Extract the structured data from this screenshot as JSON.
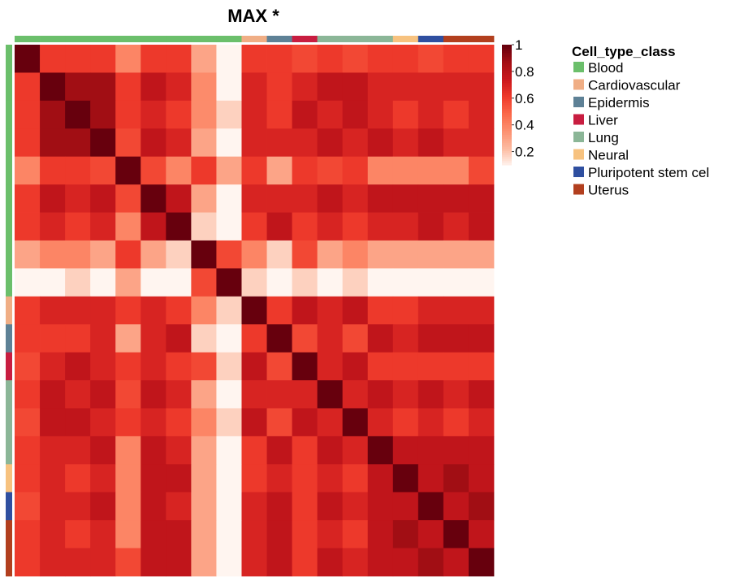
{
  "chart_data": {
    "type": "heatmap",
    "title": "MAX *",
    "legend": {
      "title": "Cell_type_class",
      "placement": "right",
      "items": [
        {
          "label": "Blood",
          "color": "#6BBF6B"
        },
        {
          "label": "Cardiovascular",
          "color": "#F0AE85"
        },
        {
          "label": "Epidermis",
          "color": "#5E8196"
        },
        {
          "label": "Liver",
          "color": "#C81D40"
        },
        {
          "label": "Lung",
          "color": "#8BB697"
        },
        {
          "label": "Neural",
          "color": "#F7C27F"
        },
        {
          "label": "Pluripotent stem cel",
          "color": "#2F4FA0"
        },
        {
          "label": "Uterus",
          "color": "#B23F1E"
        }
      ]
    },
    "color_scale": {
      "min": 0.1,
      "max": 1,
      "ticks": [
        "1",
        "0.8",
        "0.6",
        "0.4",
        "0.2"
      ],
      "tick_values": [
        1,
        0.8,
        0.6,
        0.4,
        0.2
      ],
      "colors": [
        "#FFF5F0",
        "#FCBBA1",
        "#FC9272",
        "#FB6A4A",
        "#EF3B2C",
        "#CB181D",
        "#A50F15",
        "#67000D"
      ]
    },
    "row_classes": [
      0,
      0,
      0,
      0,
      0,
      0,
      0,
      0,
      0,
      1,
      2,
      3,
      4,
      4,
      4,
      5,
      6,
      7,
      7
    ],
    "col_classes": [
      0,
      0,
      0,
      0,
      0,
      0,
      0,
      0,
      0,
      1,
      2,
      3,
      4,
      4,
      4,
      5,
      6,
      7,
      7
    ],
    "matrix": [
      [
        1.0,
        0.62,
        0.62,
        0.62,
        0.4,
        0.62,
        0.62,
        0.3,
        0.1,
        0.62,
        0.62,
        0.58,
        0.62,
        0.58,
        0.62,
        0.62,
        0.58,
        0.62,
        0.62
      ],
      [
        0.62,
        1.0,
        0.88,
        0.88,
        0.62,
        0.78,
        0.7,
        0.38,
        0.1,
        0.7,
        0.62,
        0.7,
        0.78,
        0.78,
        0.7,
        0.7,
        0.7,
        0.7,
        0.7
      ],
      [
        0.62,
        0.88,
        1.0,
        0.88,
        0.62,
        0.7,
        0.62,
        0.38,
        0.18,
        0.7,
        0.62,
        0.78,
        0.7,
        0.78,
        0.7,
        0.62,
        0.7,
        0.62,
        0.7
      ],
      [
        0.62,
        0.88,
        0.88,
        1.0,
        0.58,
        0.78,
        0.7,
        0.3,
        0.1,
        0.7,
        0.7,
        0.7,
        0.78,
        0.7,
        0.78,
        0.7,
        0.78,
        0.7,
        0.7
      ],
      [
        0.4,
        0.62,
        0.62,
        0.58,
        1.0,
        0.58,
        0.4,
        0.62,
        0.3,
        0.62,
        0.3,
        0.62,
        0.58,
        0.62,
        0.4,
        0.4,
        0.4,
        0.4,
        0.58
      ],
      [
        0.62,
        0.78,
        0.7,
        0.78,
        0.58,
        1.0,
        0.78,
        0.3,
        0.1,
        0.7,
        0.7,
        0.7,
        0.78,
        0.7,
        0.78,
        0.78,
        0.78,
        0.78,
        0.78
      ],
      [
        0.62,
        0.7,
        0.62,
        0.7,
        0.4,
        0.78,
        1.0,
        0.18,
        0.1,
        0.62,
        0.78,
        0.62,
        0.7,
        0.62,
        0.7,
        0.7,
        0.78,
        0.7,
        0.78
      ],
      [
        0.3,
        0.4,
        0.4,
        0.3,
        0.62,
        0.3,
        0.18,
        1.0,
        0.58,
        0.4,
        0.18,
        0.58,
        0.3,
        0.4,
        0.3,
        0.3,
        0.3,
        0.3,
        0.3
      ],
      [
        0.1,
        0.1,
        0.18,
        0.1,
        0.3,
        0.1,
        0.1,
        0.58,
        1.0,
        0.18,
        0.1,
        0.18,
        0.1,
        0.18,
        0.1,
        0.1,
        0.1,
        0.1,
        0.1
      ],
      [
        0.62,
        0.7,
        0.7,
        0.7,
        0.62,
        0.7,
        0.62,
        0.4,
        0.18,
        1.0,
        0.62,
        0.78,
        0.7,
        0.78,
        0.62,
        0.62,
        0.7,
        0.7,
        0.7
      ],
      [
        0.62,
        0.62,
        0.62,
        0.7,
        0.3,
        0.7,
        0.78,
        0.18,
        0.1,
        0.62,
        1.0,
        0.58,
        0.7,
        0.58,
        0.78,
        0.7,
        0.78,
        0.78,
        0.78
      ],
      [
        0.58,
        0.7,
        0.78,
        0.7,
        0.62,
        0.7,
        0.62,
        0.58,
        0.18,
        0.78,
        0.58,
        1.0,
        0.7,
        0.78,
        0.62,
        0.62,
        0.62,
        0.62,
        0.62
      ],
      [
        0.62,
        0.78,
        0.7,
        0.78,
        0.58,
        0.78,
        0.7,
        0.3,
        0.1,
        0.7,
        0.7,
        0.7,
        1.0,
        0.7,
        0.78,
        0.7,
        0.78,
        0.7,
        0.78
      ],
      [
        0.58,
        0.78,
        0.78,
        0.7,
        0.62,
        0.7,
        0.62,
        0.4,
        0.18,
        0.78,
        0.58,
        0.78,
        0.7,
        1.0,
        0.7,
        0.62,
        0.7,
        0.62,
        0.7
      ],
      [
        0.62,
        0.7,
        0.7,
        0.78,
        0.4,
        0.78,
        0.7,
        0.3,
        0.1,
        0.62,
        0.78,
        0.62,
        0.78,
        0.7,
        1.0,
        0.78,
        0.78,
        0.78,
        0.78
      ],
      [
        0.62,
        0.7,
        0.62,
        0.7,
        0.4,
        0.78,
        0.78,
        0.3,
        0.1,
        0.62,
        0.7,
        0.62,
        0.7,
        0.62,
        0.78,
        1.0,
        0.78,
        0.88,
        0.78
      ],
      [
        0.58,
        0.7,
        0.7,
        0.78,
        0.4,
        0.78,
        0.7,
        0.3,
        0.1,
        0.7,
        0.78,
        0.62,
        0.78,
        0.7,
        0.78,
        0.78,
        1.0,
        0.78,
        0.88
      ],
      [
        0.62,
        0.7,
        0.62,
        0.7,
        0.4,
        0.78,
        0.78,
        0.3,
        0.1,
        0.7,
        0.78,
        0.62,
        0.7,
        0.62,
        0.78,
        0.88,
        0.78,
        1.0,
        0.78
      ],
      [
        0.62,
        0.7,
        0.7,
        0.7,
        0.58,
        0.78,
        0.78,
        0.3,
        0.1,
        0.7,
        0.78,
        0.62,
        0.78,
        0.7,
        0.78,
        0.78,
        0.88,
        0.78,
        1.0
      ]
    ]
  }
}
